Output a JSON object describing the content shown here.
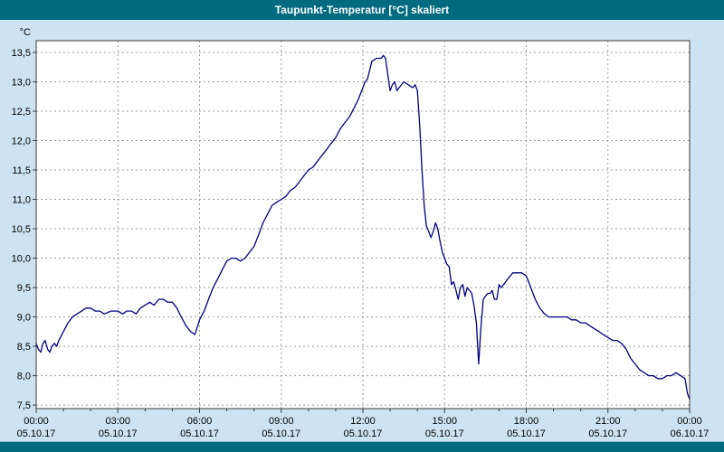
{
  "window": {
    "title": "Taupunkt-Temperatur [°C] skaliert"
  },
  "colors": {
    "titlebar": "#006a7f",
    "background": "#cee3f1",
    "plot_bg": "#ffffff",
    "grid": "#999999",
    "border": "#3c3c3c",
    "line": "#000080",
    "text": "#000000"
  },
  "chart_data": {
    "type": "line",
    "title": "Taupunkt-Temperatur [°C] skaliert",
    "xlabel": "",
    "ylabel": "°C",
    "ylim": [
      7.5,
      13.5
    ],
    "grid": true,
    "legend": false,
    "y_ticks": [
      {
        "value": 13.5,
        "label": "13,5"
      },
      {
        "value": 13.0,
        "label": "13,0"
      },
      {
        "value": 12.5,
        "label": "12,5"
      },
      {
        "value": 12.0,
        "label": "12,0"
      },
      {
        "value": 11.5,
        "label": "11,5"
      },
      {
        "value": 11.0,
        "label": "11,0"
      },
      {
        "value": 10.5,
        "label": "10,5"
      },
      {
        "value": 10.0,
        "label": "10,0"
      },
      {
        "value": 9.5,
        "label": "9,5"
      },
      {
        "value": 9.0,
        "label": "9,0"
      },
      {
        "value": 8.5,
        "label": "8,5"
      },
      {
        "value": 8.0,
        "label": "8,0"
      },
      {
        "value": 7.5,
        "label": "7,5"
      }
    ],
    "x_ticks": [
      {
        "hour": 0,
        "time": "00:00",
        "date": "05.10.17"
      },
      {
        "hour": 3,
        "time": "03:00",
        "date": "05.10.17"
      },
      {
        "hour": 6,
        "time": "06:00",
        "date": "05.10.17"
      },
      {
        "hour": 9,
        "time": "09:00",
        "date": "05.10.17"
      },
      {
        "hour": 12,
        "time": "12:00",
        "date": "05.10.17"
      },
      {
        "hour": 15,
        "time": "15:00",
        "date": "05.10.17"
      },
      {
        "hour": 18,
        "time": "18:00",
        "date": "05.10.17"
      },
      {
        "hour": 21,
        "time": "21:00",
        "date": "05.10.17"
      },
      {
        "hour": 24,
        "time": "00:00",
        "date": "06.10.17"
      }
    ],
    "series": [
      {
        "name": "Taupunkt-Temperatur",
        "color": "#000080",
        "points": [
          [
            0.0,
            8.55
          ],
          [
            0.08,
            8.45
          ],
          [
            0.17,
            8.4
          ],
          [
            0.25,
            8.55
          ],
          [
            0.33,
            8.6
          ],
          [
            0.42,
            8.45
          ],
          [
            0.5,
            8.4
          ],
          [
            0.58,
            8.5
          ],
          [
            0.67,
            8.55
          ],
          [
            0.75,
            8.5
          ],
          [
            0.83,
            8.6
          ],
          [
            1.0,
            8.75
          ],
          [
            1.17,
            8.9
          ],
          [
            1.33,
            9.0
          ],
          [
            1.5,
            9.05
          ],
          [
            1.67,
            9.1
          ],
          [
            1.83,
            9.15
          ],
          [
            2.0,
            9.15
          ],
          [
            2.17,
            9.1
          ],
          [
            2.33,
            9.1
          ],
          [
            2.5,
            9.05
          ],
          [
            2.75,
            9.1
          ],
          [
            3.0,
            9.1
          ],
          [
            3.17,
            9.05
          ],
          [
            3.33,
            9.1
          ],
          [
            3.5,
            9.1
          ],
          [
            3.67,
            9.05
          ],
          [
            3.83,
            9.15
          ],
          [
            4.0,
            9.2
          ],
          [
            4.17,
            9.25
          ],
          [
            4.33,
            9.2
          ],
          [
            4.5,
            9.3
          ],
          [
            4.67,
            9.3
          ],
          [
            4.83,
            9.25
          ],
          [
            5.0,
            9.25
          ],
          [
            5.17,
            9.15
          ],
          [
            5.33,
            9.0
          ],
          [
            5.5,
            8.85
          ],
          [
            5.67,
            8.75
          ],
          [
            5.83,
            8.7
          ],
          [
            6.0,
            8.95
          ],
          [
            6.17,
            9.1
          ],
          [
            6.33,
            9.3
          ],
          [
            6.5,
            9.5
          ],
          [
            6.67,
            9.65
          ],
          [
            6.83,
            9.8
          ],
          [
            7.0,
            9.95
          ],
          [
            7.17,
            10.0
          ],
          [
            7.33,
            10.0
          ],
          [
            7.5,
            9.95
          ],
          [
            7.67,
            10.0
          ],
          [
            7.83,
            10.1
          ],
          [
            8.0,
            10.2
          ],
          [
            8.17,
            10.4
          ],
          [
            8.33,
            10.6
          ],
          [
            8.5,
            10.75
          ],
          [
            8.67,
            10.9
          ],
          [
            8.83,
            10.95
          ],
          [
            9.0,
            11.0
          ],
          [
            9.17,
            11.05
          ],
          [
            9.33,
            11.15
          ],
          [
            9.5,
            11.2
          ],
          [
            9.67,
            11.3
          ],
          [
            9.83,
            11.4
          ],
          [
            10.0,
            11.5
          ],
          [
            10.17,
            11.55
          ],
          [
            10.33,
            11.65
          ],
          [
            10.5,
            11.75
          ],
          [
            10.67,
            11.85
          ],
          [
            10.83,
            11.95
          ],
          [
            11.0,
            12.05
          ],
          [
            11.17,
            12.2
          ],
          [
            11.33,
            12.3
          ],
          [
            11.5,
            12.4
          ],
          [
            11.67,
            12.55
          ],
          [
            11.83,
            12.7
          ],
          [
            12.0,
            12.9
          ],
          [
            12.08,
            13.0
          ],
          [
            12.17,
            13.05
          ],
          [
            12.25,
            13.2
          ],
          [
            12.33,
            13.35
          ],
          [
            12.5,
            13.4
          ],
          [
            12.67,
            13.4
          ],
          [
            12.75,
            13.45
          ],
          [
            12.83,
            13.4
          ],
          [
            12.92,
            13.1
          ],
          [
            13.0,
            12.85
          ],
          [
            13.08,
            12.95
          ],
          [
            13.17,
            13.0
          ],
          [
            13.25,
            12.85
          ],
          [
            13.33,
            12.9
          ],
          [
            13.5,
            13.0
          ],
          [
            13.67,
            12.95
          ],
          [
            13.83,
            12.9
          ],
          [
            13.92,
            12.95
          ],
          [
            14.0,
            12.85
          ],
          [
            14.08,
            12.3
          ],
          [
            14.17,
            11.5
          ],
          [
            14.25,
            10.9
          ],
          [
            14.33,
            10.55
          ],
          [
            14.42,
            10.45
          ],
          [
            14.5,
            10.35
          ],
          [
            14.58,
            10.45
          ],
          [
            14.67,
            10.6
          ],
          [
            14.75,
            10.5
          ],
          [
            14.83,
            10.3
          ],
          [
            14.92,
            10.1
          ],
          [
            15.0,
            10.0
          ],
          [
            15.08,
            9.9
          ],
          [
            15.17,
            9.85
          ],
          [
            15.25,
            9.55
          ],
          [
            15.33,
            9.6
          ],
          [
            15.42,
            9.45
          ],
          [
            15.5,
            9.3
          ],
          [
            15.58,
            9.5
          ],
          [
            15.67,
            9.55
          ],
          [
            15.75,
            9.35
          ],
          [
            15.83,
            9.5
          ],
          [
            15.92,
            9.45
          ],
          [
            16.0,
            9.4
          ],
          [
            16.08,
            9.2
          ],
          [
            16.17,
            8.9
          ],
          [
            16.25,
            8.2
          ],
          [
            16.33,
            8.8
          ],
          [
            16.42,
            9.3
          ],
          [
            16.5,
            9.35
          ],
          [
            16.58,
            9.4
          ],
          [
            16.67,
            9.4
          ],
          [
            16.75,
            9.45
          ],
          [
            16.83,
            9.3
          ],
          [
            16.92,
            9.3
          ],
          [
            17.0,
            9.55
          ],
          [
            17.08,
            9.5
          ],
          [
            17.17,
            9.55
          ],
          [
            17.25,
            9.6
          ],
          [
            17.33,
            9.65
          ],
          [
            17.42,
            9.7
          ],
          [
            17.5,
            9.75
          ],
          [
            17.67,
            9.75
          ],
          [
            17.83,
            9.75
          ],
          [
            18.0,
            9.7
          ],
          [
            18.17,
            9.5
          ],
          [
            18.33,
            9.3
          ],
          [
            18.5,
            9.15
          ],
          [
            18.67,
            9.05
          ],
          [
            18.83,
            9.0
          ],
          [
            19.0,
            9.0
          ],
          [
            19.17,
            9.0
          ],
          [
            19.33,
            9.0
          ],
          [
            19.5,
            9.0
          ],
          [
            19.67,
            8.95
          ],
          [
            19.83,
            8.95
          ],
          [
            20.0,
            8.9
          ],
          [
            20.17,
            8.9
          ],
          [
            20.33,
            8.85
          ],
          [
            20.5,
            8.8
          ],
          [
            20.67,
            8.75
          ],
          [
            20.83,
            8.7
          ],
          [
            21.0,
            8.65
          ],
          [
            21.17,
            8.6
          ],
          [
            21.33,
            8.6
          ],
          [
            21.5,
            8.55
          ],
          [
            21.67,
            8.45
          ],
          [
            21.83,
            8.3
          ],
          [
            22.0,
            8.2
          ],
          [
            22.17,
            8.1
          ],
          [
            22.33,
            8.05
          ],
          [
            22.5,
            8.0
          ],
          [
            22.67,
            8.0
          ],
          [
            22.83,
            7.95
          ],
          [
            23.0,
            7.95
          ],
          [
            23.17,
            8.0
          ],
          [
            23.33,
            8.0
          ],
          [
            23.5,
            8.05
          ],
          [
            23.67,
            8.0
          ],
          [
            23.83,
            7.95
          ],
          [
            23.92,
            7.7
          ],
          [
            24.0,
            7.6
          ]
        ]
      }
    ]
  }
}
